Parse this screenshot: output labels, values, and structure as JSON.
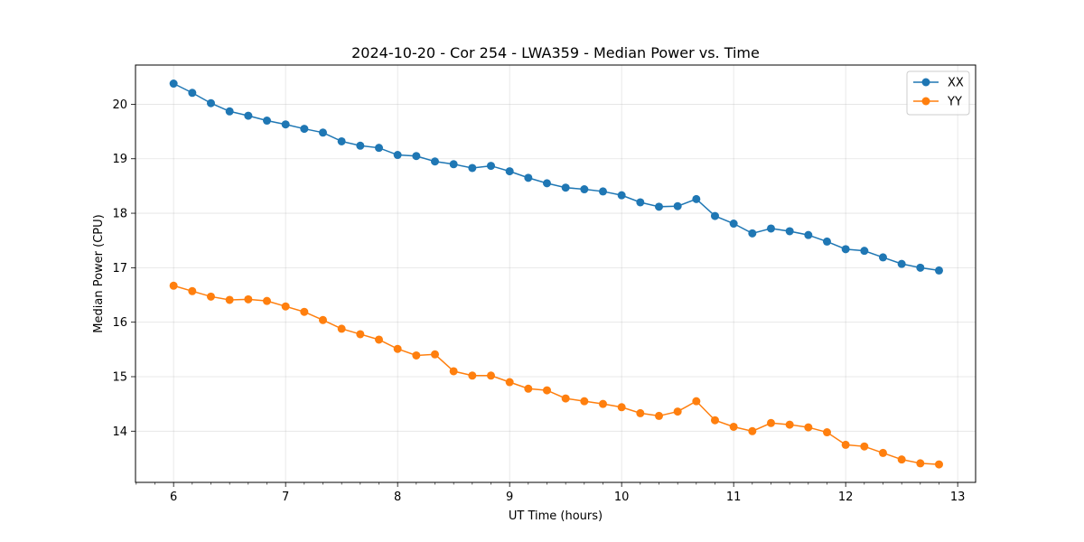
{
  "chart_data": {
    "type": "line",
    "title": "2024-10-20 - Cor 254 - LWA359 - Median Power vs. Time",
    "xlabel": "UT Time (hours)",
    "ylabel": "Median Power (CPU)",
    "xlim": [
      5.66,
      13.16
    ],
    "ylim": [
      13.06,
      20.72
    ],
    "xticks": [
      6,
      7,
      8,
      9,
      10,
      11,
      12,
      13
    ],
    "yticks": [
      14,
      15,
      16,
      17,
      18,
      19,
      20
    ],
    "grid": true,
    "legend_position": "top-right",
    "x": [
      6.0,
      6.1667,
      6.3333,
      6.5,
      6.6667,
      6.8333,
      7.0,
      7.1667,
      7.3333,
      7.5,
      7.6667,
      7.8333,
      8.0,
      8.1667,
      8.3333,
      8.5,
      8.6667,
      8.8333,
      9.0,
      9.1667,
      9.3333,
      9.5,
      9.6667,
      9.8333,
      10.0,
      10.1667,
      10.3333,
      10.5,
      10.6667,
      10.8333,
      11.0,
      11.1667,
      11.3333,
      11.5,
      11.6667,
      11.8333,
      12.0,
      12.1667,
      12.3333,
      12.5,
      12.6667,
      12.8333
    ],
    "series": [
      {
        "name": "XX",
        "color": "#1f77b4",
        "values": [
          20.38,
          20.21,
          20.02,
          19.87,
          19.79,
          19.7,
          19.63,
          19.55,
          19.48,
          19.32,
          19.24,
          19.2,
          19.07,
          19.05,
          18.95,
          18.9,
          18.83,
          18.87,
          18.77,
          18.65,
          18.55,
          18.47,
          18.44,
          18.4,
          18.33,
          18.2,
          18.12,
          18.13,
          18.26,
          17.95,
          17.81,
          17.63,
          17.72,
          17.67,
          17.6,
          17.48,
          17.34,
          17.31,
          17.19,
          17.07,
          17.0,
          16.95
        ]
      },
      {
        "name": "YY",
        "color": "#ff7f0e",
        "values": [
          16.67,
          16.57,
          16.47,
          16.41,
          16.42,
          16.39,
          16.29,
          16.19,
          16.04,
          15.88,
          15.78,
          15.68,
          15.51,
          15.39,
          15.41,
          15.1,
          15.02,
          15.02,
          14.9,
          14.78,
          14.75,
          14.6,
          14.55,
          14.5,
          14.44,
          14.33,
          14.28,
          14.36,
          14.55,
          14.2,
          14.08,
          14.0,
          14.15,
          14.12,
          14.07,
          13.98,
          13.75,
          13.72,
          13.6,
          13.48,
          13.41,
          13.39
        ]
      }
    ]
  }
}
